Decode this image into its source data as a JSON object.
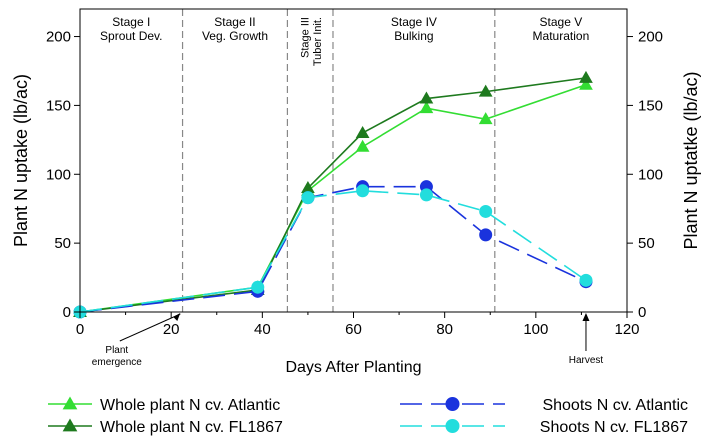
{
  "chart_data": {
    "type": "line",
    "xlabel": "Days After Planting",
    "ylabel_left": "Plant N uptake (lb/ac)",
    "ylabel_right": "Plant N uptatke (lb/ac)",
    "xlim": [
      0,
      120
    ],
    "ylim": [
      0,
      220
    ],
    "x_ticks": [
      0,
      20,
      40,
      60,
      80,
      100,
      120
    ],
    "y_ticks": [
      0,
      50,
      100,
      150,
      200
    ],
    "grid": false,
    "legend_position": "bottom",
    "stages": [
      {
        "line1": "Stage I",
        "line2": "Sprout Dev.",
        "start": 0,
        "end": 22.5,
        "vertical": false
      },
      {
        "line1": "Stage II",
        "line2": "Veg. Growth",
        "start": 22.5,
        "end": 45.5,
        "vertical": false
      },
      {
        "line1": "Stage III",
        "line2": "Tuber Init.",
        "start": 45.5,
        "end": 55.5,
        "vertical": true
      },
      {
        "line1": "Stage IV",
        "line2": "Bulking",
        "start": 55.5,
        "end": 91,
        "vertical": false
      },
      {
        "line1": "Stage V",
        "line2": "Maturation",
        "start": 91,
        "end": 120,
        "vertical": false
      }
    ],
    "stage_boundaries": [
      22.5,
      45.5,
      55.5,
      91
    ],
    "annotations": [
      {
        "lines": [
          "Plant",
          "emergence"
        ],
        "x": 14,
        "y": 0
      },
      {
        "lines": [
          "Harvest"
        ],
        "x": 111,
        "y": 0
      }
    ],
    "series": [
      {
        "name": "Whole plant N cv. Atlantic",
        "color": "#33dd33",
        "marker": "triangle",
        "dash": "solid",
        "x": [
          0,
          39,
          50,
          62,
          76,
          89,
          111
        ],
        "values": [
          0,
          18,
          88,
          120,
          148,
          140,
          165
        ]
      },
      {
        "name": "Whole plant N cv. FL1867",
        "color": "#1e7a1e",
        "marker": "triangle",
        "dash": "solid",
        "x": [
          0,
          39,
          50,
          62,
          76,
          89,
          111
        ],
        "values": [
          0,
          16,
          90,
          130,
          155,
          160,
          170
        ]
      },
      {
        "name": "Shoots N cv. Atlantic",
        "color": "#1a33dd",
        "marker": "circle",
        "dash": "dashed",
        "x": [
          0,
          39,
          50,
          62,
          76,
          89,
          111
        ],
        "values": [
          0,
          15,
          83,
          91,
          91,
          56,
          22
        ]
      },
      {
        "name": "Shoots N cv. FL1867",
        "color": "#22dddd",
        "marker": "circle",
        "dash": "dashed",
        "x": [
          0,
          39,
          50,
          62,
          76,
          89,
          111
        ],
        "values": [
          0,
          18,
          83,
          88,
          85,
          73,
          23
        ]
      }
    ]
  }
}
